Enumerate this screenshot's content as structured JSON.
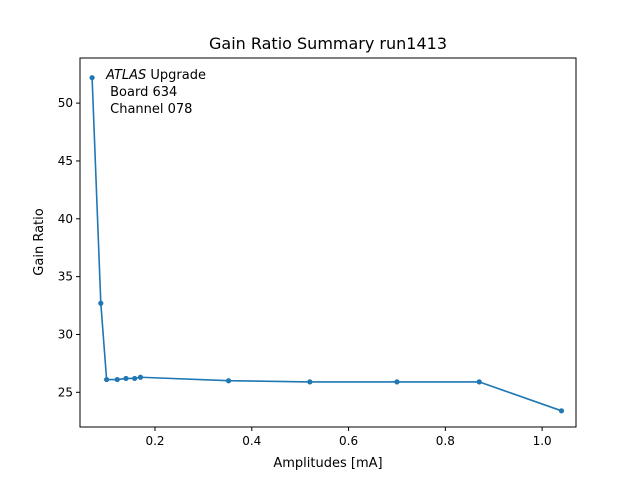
{
  "chart_data": {
    "type": "line",
    "title": "Gain Ratio Summary run1413",
    "xlabel": "Amplitudes [mA]",
    "ylabel": "Gain Ratio",
    "xlim": [
      0.045,
      1.07
    ],
    "ylim": [
      22.0,
      53.9
    ],
    "x_ticks": [
      0.2,
      0.4,
      0.6,
      0.8,
      1.0
    ],
    "x_tick_labels": [
      "0.2",
      "0.4",
      "0.6",
      "0.8",
      "1.0"
    ],
    "y_ticks": [
      25,
      30,
      35,
      40,
      45,
      50
    ],
    "y_tick_labels": [
      "25",
      "30",
      "35",
      "40",
      "45",
      "50"
    ],
    "grid": false,
    "series_color": "#1f77b4",
    "marker": "dot",
    "x": [
      0.07,
      0.088,
      0.1,
      0.122,
      0.14,
      0.158,
      0.17,
      0.352,
      0.52,
      0.7,
      0.87,
      1.04
    ],
    "y": [
      52.2,
      32.7,
      26.1,
      26.1,
      26.2,
      26.2,
      26.3,
      26.0,
      25.9,
      25.9,
      25.9,
      23.4
    ],
    "annotation": {
      "experiment": "ATLAS",
      "tag": " Upgrade",
      "line2": " Board 634",
      "line3": " Channel 078"
    }
  }
}
